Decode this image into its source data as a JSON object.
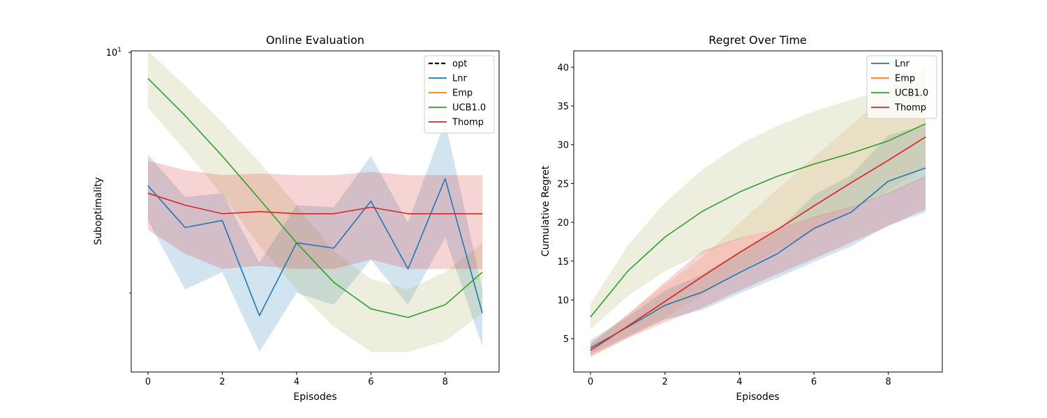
{
  "chart_data": [
    {
      "type": "line",
      "title": "Online Evaluation",
      "xlabel": "Episodes",
      "ylabel": "Suboptimality",
      "xlim": [
        -0.45,
        9.45
      ],
      "ylim": [
        1.18,
        10.1
      ],
      "yscale": "log",
      "xticks": [
        0,
        2,
        4,
        6,
        8
      ],
      "yticks": [
        {
          "value": 10,
          "label": "10",
          "exp": "1"
        }
      ],
      "yminorticks": [
        2
      ],
      "grid": false,
      "legend": "top-right",
      "x": [
        0,
        1,
        2,
        3,
        4,
        5,
        6,
        7,
        8,
        9
      ],
      "series": [
        {
          "name": "opt",
          "color": "#000000",
          "dashed": true,
          "legend_only": true
        },
        {
          "name": "Lnr",
          "color": "#1f77b4",
          "values": [
            4.1,
            3.1,
            3.25,
            1.72,
            2.8,
            2.7,
            3.7,
            2.35,
            4.3,
            1.75
          ],
          "lower": [
            3.25,
            2.05,
            2.3,
            1.35,
            2.0,
            1.85,
            2.5,
            1.85,
            2.9,
            1.4
          ],
          "upper": [
            5.05,
            3.8,
            3.9,
            2.45,
            3.6,
            3.55,
            5.0,
            3.2,
            6.3,
            2.05
          ]
        },
        {
          "name": "Emp",
          "color": "#ff7f0e",
          "legend_only": true
        },
        {
          "name": "UCB1.0",
          "color": "#2ca02c",
          "values": [
            8.4,
            6.55,
            5.0,
            3.75,
            2.8,
            2.15,
            1.8,
            1.7,
            1.85,
            2.3
          ],
          "lower": [
            6.9,
            5.2,
            3.85,
            2.75,
            2.05,
            1.6,
            1.35,
            1.35,
            1.45,
            1.75
          ],
          "upper": [
            10.1,
            8.0,
            6.25,
            4.8,
            3.6,
            2.65,
            2.2,
            2.05,
            2.3,
            2.8
          ],
          "band_color": "#a5ab55"
        },
        {
          "name": "Thomp",
          "color": "#d62728",
          "values": [
            3.9,
            3.6,
            3.4,
            3.45,
            3.4,
            3.4,
            3.55,
            3.4,
            3.4,
            3.4
          ],
          "lower": [
            3.05,
            2.6,
            2.35,
            2.4,
            2.35,
            2.35,
            2.5,
            2.35,
            2.35,
            2.35
          ],
          "upper": [
            4.85,
            4.55,
            4.4,
            4.45,
            4.4,
            4.4,
            4.5,
            4.4,
            4.4,
            4.4
          ]
        }
      ]
    },
    {
      "type": "line",
      "title": "Regret Over Time",
      "xlabel": "Episodes",
      "ylabel": "Cumulative Regret",
      "xlim": [
        -0.45,
        9.45
      ],
      "ylim": [
        0.7,
        42.1
      ],
      "yscale": "linear",
      "xticks": [
        0,
        2,
        4,
        6,
        8
      ],
      "yticks": [
        {
          "value": 5,
          "label": "5"
        },
        {
          "value": 10,
          "label": "10"
        },
        {
          "value": 15,
          "label": "15"
        },
        {
          "value": 20,
          "label": "20"
        },
        {
          "value": 25,
          "label": "25"
        },
        {
          "value": 30,
          "label": "30"
        },
        {
          "value": 35,
          "label": "35"
        },
        {
          "value": 40,
          "label": "40"
        }
      ],
      "grid": false,
      "legend": "top-right",
      "x": [
        0,
        1,
        2,
        3,
        4,
        5,
        6,
        7,
        8,
        9
      ],
      "series": [
        {
          "name": "Lnr",
          "color": "#1f77b4",
          "values": [
            3.8,
            6.5,
            9.3,
            11.0,
            13.5,
            15.9,
            19.2,
            21.3,
            25.3,
            27.0
          ],
          "lower": [
            3.0,
            5.3,
            7.5,
            8.7,
            10.8,
            12.8,
            14.9,
            16.9,
            19.6,
            21.3
          ],
          "upper": [
            4.8,
            7.8,
            11.2,
            13.3,
            16.2,
            18.8,
            23.5,
            26.1,
            31.2,
            32.6
          ]
        },
        {
          "name": "Emp",
          "color": "#ff7f0e",
          "values": [
            3.5,
            6.6,
            9.8,
            13.0,
            16.1,
            19.0,
            22.1,
            25.1,
            28.0,
            31.0
          ],
          "lower": [
            2.6,
            5.0,
            7.7,
            10.6,
            13.6,
            16.4,
            18.9,
            21.6,
            24.0,
            27.2
          ],
          "upper": [
            4.5,
            8.2,
            11.9,
            15.5,
            19.9,
            24.2,
            28.4,
            32.5,
            36.7,
            40.3
          ],
          "band_color": "#e7a566"
        },
        {
          "name": "UCB1.0",
          "color": "#2ca02c",
          "values": [
            7.8,
            13.7,
            18.1,
            21.4,
            23.9,
            25.9,
            27.5,
            28.9,
            30.5,
            32.7
          ],
          "lower": [
            6.2,
            10.5,
            13.7,
            16.0,
            17.9,
            19.3,
            20.6,
            21.9,
            23.6,
            25.9
          ],
          "upper": [
            9.5,
            17.0,
            22.5,
            26.8,
            30.0,
            32.4,
            34.3,
            35.8,
            37.2,
            39.5
          ],
          "band_color": "#a5ab55"
        },
        {
          "name": "Thomp",
          "color": "#d62728",
          "values": [
            3.5,
            6.6,
            9.8,
            13.0,
            16.1,
            19.0,
            22.1,
            25.1,
            28.0,
            31.0
          ],
          "lower": [
            2.7,
            5.1,
            7.1,
            9.0,
            11.2,
            13.3,
            15.3,
            17.4,
            19.5,
            21.7
          ],
          "upper": [
            4.3,
            8.1,
            12.3,
            16.3,
            18.0,
            19.2,
            20.7,
            22.0,
            23.8,
            26.0
          ]
        }
      ]
    }
  ]
}
